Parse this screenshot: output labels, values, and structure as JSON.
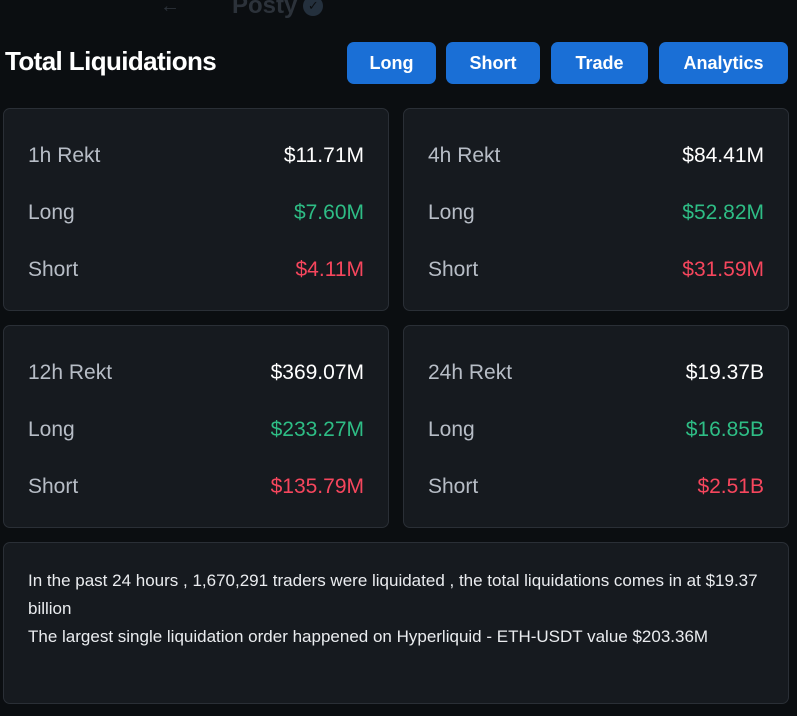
{
  "ghost_header": {
    "back_arrow": "←",
    "account_name": "Posty",
    "verified_icon": "✓"
  },
  "header": {
    "title": "Total Liquidations",
    "buttons": {
      "long": "Long",
      "short": "Short",
      "trade": "Trade",
      "analytics": "Analytics"
    }
  },
  "cards": [
    {
      "label": "1h Rekt",
      "total": "$11.71M",
      "long_label": "Long",
      "long": "$7.60M",
      "short_label": "Short",
      "short": "$4.11M"
    },
    {
      "label": "4h Rekt",
      "total": "$84.41M",
      "long_label": "Long",
      "long": "$52.82M",
      "short_label": "Short",
      "short": "$31.59M"
    },
    {
      "label": "12h Rekt",
      "total": "$369.07M",
      "long_label": "Long",
      "long": "$233.27M",
      "short_label": "Short",
      "short": "$135.79M"
    },
    {
      "label": "24h Rekt",
      "total": "$19.37B",
      "long_label": "Long",
      "long": "$16.85B",
      "short_label": "Short",
      "short": "$2.51B"
    }
  ],
  "summary": {
    "line1": "In the past 24 hours , 1,670,291 traders were liquidated , the total liquidations comes in at $19.37 billion",
    "line2": "The largest single liquidation order happened on Hyperliquid - ETH-USDT value $203.36M"
  },
  "colors": {
    "background": "#0b0e11",
    "card": "#161a1f",
    "button": "#1a6fd6",
    "positive": "#2ebd85",
    "negative": "#f6465d"
  }
}
